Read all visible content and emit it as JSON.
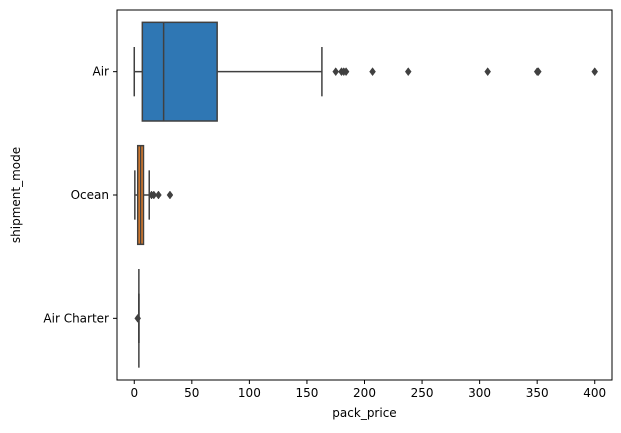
{
  "chart_data": {
    "type": "boxplot",
    "orientation": "horizontal",
    "xlabel": "pack_price",
    "ylabel": "shipment_mode",
    "xlim": [
      -15,
      415
    ],
    "xticks": [
      0,
      50,
      100,
      150,
      200,
      250,
      300,
      350,
      400
    ],
    "grid": false,
    "categories": [
      {
        "name": "Air",
        "color": "#2f77b4",
        "whisker_low": 0,
        "q1": 7,
        "median": 25.5,
        "q3": 72,
        "whisker_high": 163,
        "outliers": [
          175,
          180,
          182,
          184,
          207,
          238,
          307,
          350,
          351,
          400
        ]
      },
      {
        "name": "Ocean",
        "color": "#e8802a",
        "whisker_low": 0.5,
        "q1": 3,
        "median": 5.5,
        "q3": 8,
        "whisker_high": 13,
        "outliers": [
          15,
          17,
          21,
          31
        ]
      },
      {
        "name": "Air Charter",
        "color": "#3aa33a",
        "whisker_low": 4,
        "q1": 4,
        "median": 4,
        "q3": 4,
        "whisker_high": 4,
        "outliers": [
          3
        ]
      }
    ]
  }
}
